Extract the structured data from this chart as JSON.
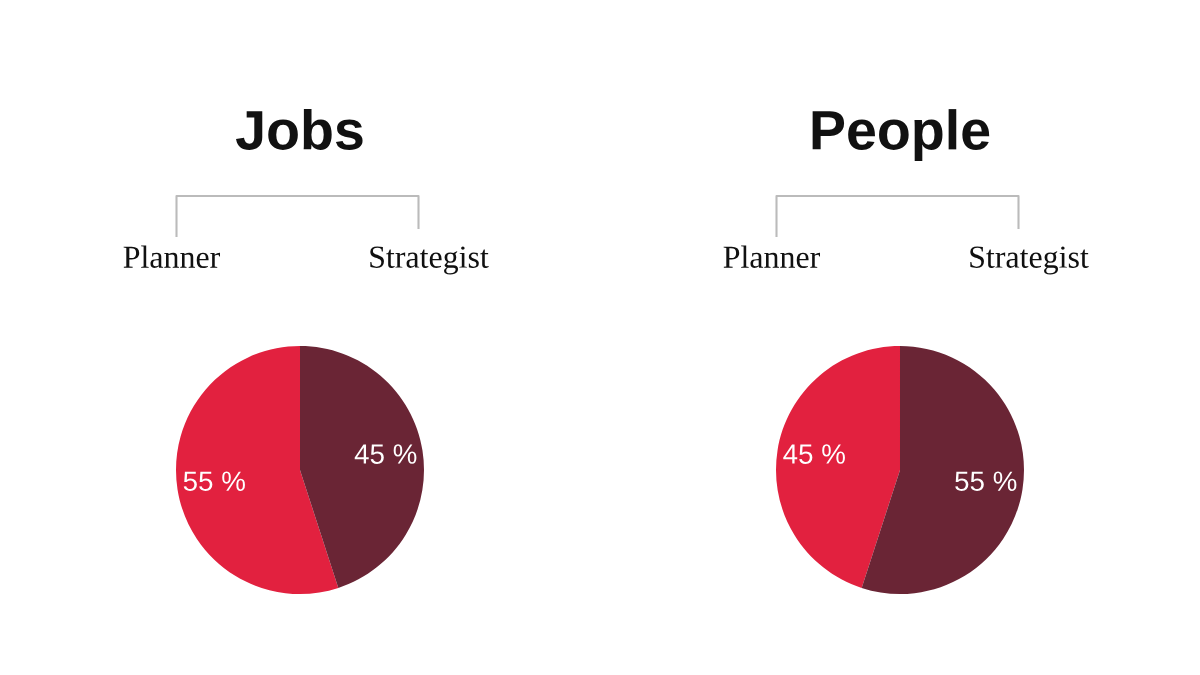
{
  "chart_data": [
    {
      "type": "pie",
      "title": "Jobs",
      "categories": [
        "Planner",
        "Strategist"
      ],
      "values": [
        55,
        45
      ],
      "colors": [
        "#e2213f",
        "#6a2535"
      ],
      "value_labels": [
        "55 %",
        "45 %"
      ]
    },
    {
      "type": "pie",
      "title": "People",
      "categories": [
        "Planner",
        "Strategist"
      ],
      "values": [
        45,
        55
      ],
      "colors": [
        "#e2213f",
        "#6a2535"
      ],
      "value_labels": [
        "45 %",
        "55 %"
      ]
    }
  ]
}
